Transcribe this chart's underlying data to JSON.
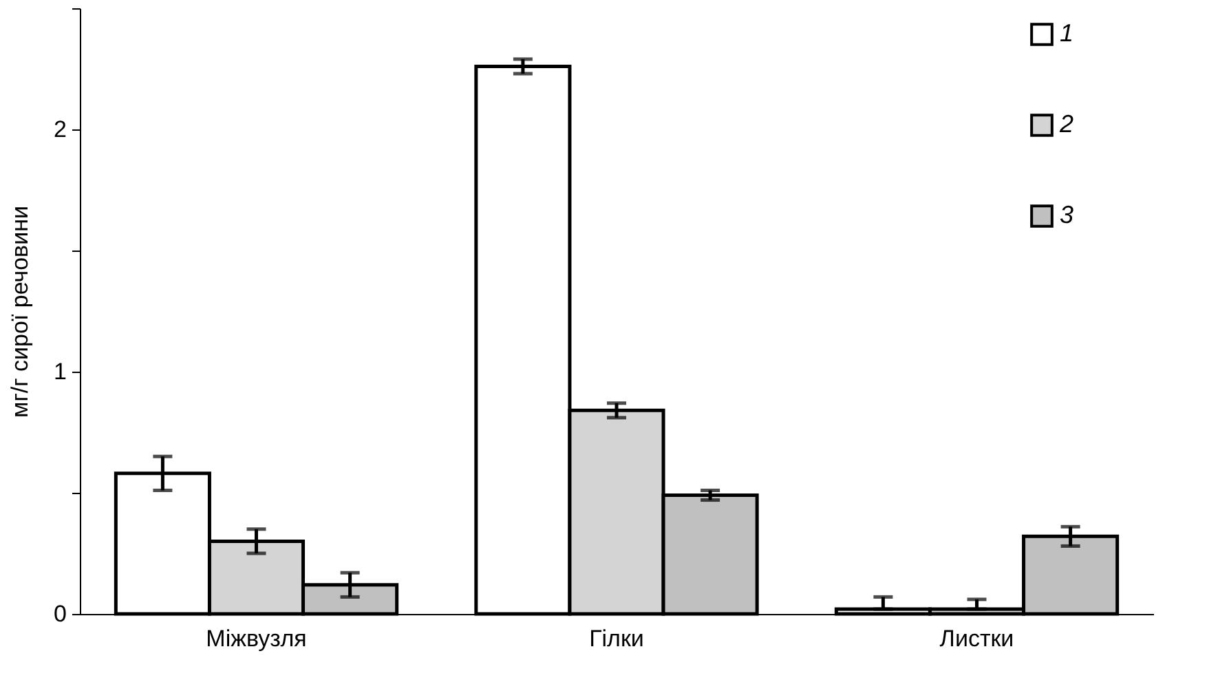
{
  "chart_data": {
    "type": "bar",
    "ylabel": "мг/г  сирої речовини",
    "categories": [
      "Міжвузля",
      "Гілки",
      "Листки"
    ],
    "series": [
      {
        "name": "1",
        "color": "#ffffff",
        "values": [
          0.58,
          2.26,
          0.02
        ],
        "errors": [
          0.07,
          0.03,
          [
            0.02,
            0.07
          ]
        ]
      },
      {
        "name": "2",
        "color": "#d4d4d4",
        "values": [
          0.3,
          0.84,
          0.02
        ],
        "errors": [
          0.05,
          0.03,
          [
            0.02,
            0.06
          ]
        ]
      },
      {
        "name": "3",
        "color": "#c0c0c0",
        "values": [
          0.12,
          0.49,
          0.32
        ],
        "errors": [
          0.05,
          0.02,
          0.04
        ]
      }
    ],
    "ylim": [
      0,
      2.5
    ],
    "yticks": [
      0,
      {
        "value": 0.5,
        "label": null
      },
      1,
      {
        "value": 1.5,
        "label": null
      },
      2,
      {
        "value": 2.5,
        "label": null
      }
    ],
    "grid": false,
    "legend": "top right"
  }
}
